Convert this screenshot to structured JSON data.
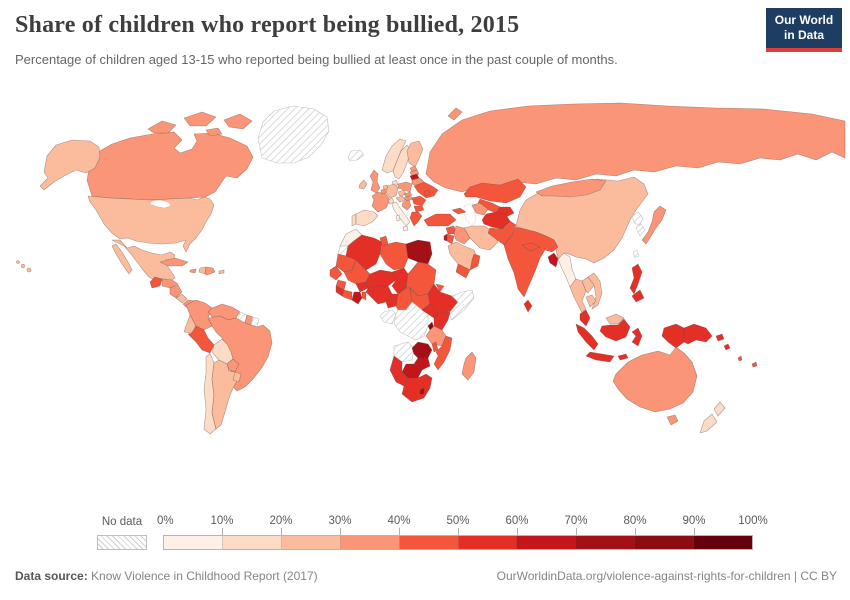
{
  "header": {
    "title": "Share of children who report being bullied, 2015",
    "subtitle": "Percentage of children aged 13-15 who reported being bullied at least once in the past couple of months."
  },
  "logo": {
    "line1": "Our World",
    "line2": "in Data",
    "bg": "#1d3d63",
    "accent": "#dc3e3e"
  },
  "legend": {
    "no_data_label": "No data",
    "ticks": [
      "0%",
      "10%",
      "20%",
      "30%",
      "40%",
      "50%",
      "60%",
      "70%",
      "80%",
      "90%",
      "100%"
    ],
    "colors": [
      "#fef0e7",
      "#fcdbc7",
      "#fbbc9d",
      "#fb9577",
      "#f4563c",
      "#e42f27",
      "#c2161c",
      "#a31016",
      "#8a0d13",
      "#67000d"
    ]
  },
  "footer": {
    "source_label": "Data source:",
    "source_text": " Know Violence in Childhood Report (2017)",
    "credit": "OurWorldinData.org/violence-against-rights-for-children | CC BY"
  },
  "chart_data": {
    "type": "choropleth_map",
    "title": "Share of children who report being bullied, 2015",
    "unit": "%",
    "bins": {
      "min": 0,
      "max": 100,
      "step": 10
    },
    "legend_position": "bottom",
    "note": "Values estimated from map color bins; hatched = no data",
    "no_data_entities": [
      "Greenland",
      "Iceland",
      "Western Sahara",
      "Somalia",
      "DR Congo",
      "Gabon",
      "Angola",
      "Guyana",
      "French Guiana",
      "North Korea",
      "South Korea",
      "Taiwan"
    ],
    "data": [
      {
        "entity": "United States",
        "value": 27
      },
      {
        "entity": "Canada",
        "value": 38
      },
      {
        "entity": "Greenland",
        "value": null
      },
      {
        "entity": "Iceland",
        "value": null
      },
      {
        "entity": "Mexico",
        "value": 28
      },
      {
        "entity": "Guatemala",
        "value": 45
      },
      {
        "entity": "Honduras",
        "value": 35
      },
      {
        "entity": "Nicaragua",
        "value": 35
      },
      {
        "entity": "Costa Rica",
        "value": 22
      },
      {
        "entity": "Panama",
        "value": 33
      },
      {
        "entity": "Cuba",
        "value": 33
      },
      {
        "entity": "Jamaica",
        "value": 35
      },
      {
        "entity": "Haiti",
        "value": 25
      },
      {
        "entity": "Dominican Republic",
        "value": 33
      },
      {
        "entity": "Puerto Rico",
        "value": 25
      },
      {
        "entity": "Colombia",
        "value": 38
      },
      {
        "entity": "Venezuela",
        "value": 38
      },
      {
        "entity": "Guyana",
        "value": null
      },
      {
        "entity": "Suriname",
        "value": 30
      },
      {
        "entity": "French Guiana",
        "value": null
      },
      {
        "entity": "Ecuador",
        "value": 25
      },
      {
        "entity": "Peru",
        "value": 47
      },
      {
        "entity": "Brazil",
        "value": 37
      },
      {
        "entity": "Bolivia",
        "value": 18
      },
      {
        "entity": "Paraguay",
        "value": 32
      },
      {
        "entity": "Chile",
        "value": 13
      },
      {
        "entity": "Argentina",
        "value": 23
      },
      {
        "entity": "Uruguay",
        "value": 25
      },
      {
        "entity": "Norway",
        "value": 15
      },
      {
        "entity": "Sweden",
        "value": 17
      },
      {
        "entity": "Finland",
        "value": 27
      },
      {
        "entity": "Denmark",
        "value": 16
      },
      {
        "entity": "Ireland",
        "value": 26
      },
      {
        "entity": "United Kingdom",
        "value": 32
      },
      {
        "entity": "Portugal",
        "value": 17
      },
      {
        "entity": "Spain",
        "value": 18
      },
      {
        "entity": "France",
        "value": 33
      },
      {
        "entity": "Netherlands",
        "value": 22
      },
      {
        "entity": "Belgium",
        "value": 35
      },
      {
        "entity": "Germany",
        "value": 22
      },
      {
        "entity": "Switzerland",
        "value": 12
      },
      {
        "entity": "Italy",
        "value": 7
      },
      {
        "entity": "Austria",
        "value": 24
      },
      {
        "entity": "Czechia",
        "value": 26
      },
      {
        "entity": "Poland",
        "value": 33
      },
      {
        "entity": "Estonia",
        "value": 33
      },
      {
        "entity": "Latvia",
        "value": 35
      },
      {
        "entity": "Lithuania",
        "value": 64
      },
      {
        "entity": "Belarus",
        "value": 33
      },
      {
        "entity": "Ukraine",
        "value": 40
      },
      {
        "entity": "Slovakia",
        "value": 30
      },
      {
        "entity": "Hungary",
        "value": 30
      },
      {
        "entity": "Romania",
        "value": 44
      },
      {
        "entity": "Serbia",
        "value": 32
      },
      {
        "entity": "Bulgaria",
        "value": 42
      },
      {
        "entity": "Greece",
        "value": 43
      },
      {
        "entity": "Moldova",
        "value": 42
      },
      {
        "entity": "Russia",
        "value": 37
      },
      {
        "entity": "Kazakhstan",
        "value": 42
      },
      {
        "entity": "Uzbekistan",
        "value": 49
      },
      {
        "entity": "Turkmenistan",
        "value": 38
      },
      {
        "entity": "Kyrgyzstan",
        "value": 52
      },
      {
        "entity": "Afghanistan",
        "value": 50
      },
      {
        "entity": "Pakistan",
        "value": 45
      },
      {
        "entity": "India",
        "value": 45
      },
      {
        "entity": "Nepal",
        "value": 48
      },
      {
        "entity": "Bangladesh",
        "value": 68
      },
      {
        "entity": "Sri Lanka",
        "value": 55
      },
      {
        "entity": "Myanmar",
        "value": 9
      },
      {
        "entity": "Thailand",
        "value": 25
      },
      {
        "entity": "Laos",
        "value": 25
      },
      {
        "entity": "Vietnam",
        "value": 26
      },
      {
        "entity": "Cambodia",
        "value": 28
      },
      {
        "entity": "China",
        "value": 25
      },
      {
        "entity": "Mongolia",
        "value": 36
      },
      {
        "entity": "North Korea",
        "value": null
      },
      {
        "entity": "South Korea",
        "value": null
      },
      {
        "entity": "Japan",
        "value": 38
      },
      {
        "entity": "Taiwan",
        "value": null
      },
      {
        "entity": "Philippines",
        "value": 55
      },
      {
        "entity": "Malaysia",
        "value": 52
      },
      {
        "entity": "Brunei",
        "value": 25
      },
      {
        "entity": "Indonesia",
        "value": 53
      },
      {
        "entity": "Papua New Guinea",
        "value": 57
      },
      {
        "entity": "Solomon Islands",
        "value": 55
      },
      {
        "entity": "Vanuatu",
        "value": 48
      },
      {
        "entity": "Fiji",
        "value": 45
      },
      {
        "entity": "Australia",
        "value": 36
      },
      {
        "entity": "New Zealand",
        "value": 17
      },
      {
        "entity": "Turkey",
        "value": 44
      },
      {
        "entity": "Georgia",
        "value": 40
      },
      {
        "entity": "Syria",
        "value": 43
      },
      {
        "entity": "Iraq",
        "value": 36
      },
      {
        "entity": "Israel",
        "value": 63
      },
      {
        "entity": "Jordan",
        "value": 42
      },
      {
        "entity": "Saudi Arabia",
        "value": 26
      },
      {
        "entity": "Yemen",
        "value": 48
      },
      {
        "entity": "Oman",
        "value": 42
      },
      {
        "entity": "Iran",
        "value": 28
      },
      {
        "entity": "Morocco",
        "value": 8
      },
      {
        "entity": "Western Sahara",
        "value": null
      },
      {
        "entity": "Algeria",
        "value": 55
      },
      {
        "entity": "Tunisia",
        "value": 45
      },
      {
        "entity": "Libya",
        "value": 40
      },
      {
        "entity": "Egypt",
        "value": 74
      },
      {
        "entity": "Mauritania",
        "value": 48
      },
      {
        "entity": "Senegal",
        "value": 44
      },
      {
        "entity": "Guinea",
        "value": 44
      },
      {
        "entity": "Sierra Leone",
        "value": 55
      },
      {
        "entity": "Mali",
        "value": 44
      },
      {
        "entity": "Burkina Faso",
        "value": 52
      },
      {
        "entity": "Cote d'Ivoire",
        "value": 48
      },
      {
        "entity": "Ghana",
        "value": 64
      },
      {
        "entity": "Benin",
        "value": 45
      },
      {
        "entity": "Niger",
        "value": 50
      },
      {
        "entity": "Nigeria",
        "value": 53
      },
      {
        "entity": "Chad",
        "value": 55
      },
      {
        "entity": "Sudan",
        "value": 46
      },
      {
        "entity": "Eritrea",
        "value": 45
      },
      {
        "entity": "Ethiopia",
        "value": 57
      },
      {
        "entity": "Somalia",
        "value": null
      },
      {
        "entity": "South Sudan",
        "value": 47
      },
      {
        "entity": "Cameroon",
        "value": 55
      },
      {
        "entity": "Central African Republic",
        "value": 47
      },
      {
        "entity": "Gabon",
        "value": null
      },
      {
        "entity": "DR Congo",
        "value": null
      },
      {
        "entity": "Uganda",
        "value": 58
      },
      {
        "entity": "Kenya",
        "value": 55
      },
      {
        "entity": "Rwanda",
        "value": 82
      },
      {
        "entity": "Tanzania",
        "value": 30
      },
      {
        "entity": "Angola",
        "value": null
      },
      {
        "entity": "Zambia",
        "value": 72
      },
      {
        "entity": "Malawi",
        "value": 45
      },
      {
        "entity": "Mozambique",
        "value": 44
      },
      {
        "entity": "Zimbabwe",
        "value": 63
      },
      {
        "entity": "Botswana",
        "value": 60
      },
      {
        "entity": "Namibia",
        "value": 57
      },
      {
        "entity": "South Africa",
        "value": 55
      },
      {
        "entity": "Lesotho",
        "value": 72
      },
      {
        "entity": "Madagascar",
        "value": 35
      }
    ]
  }
}
